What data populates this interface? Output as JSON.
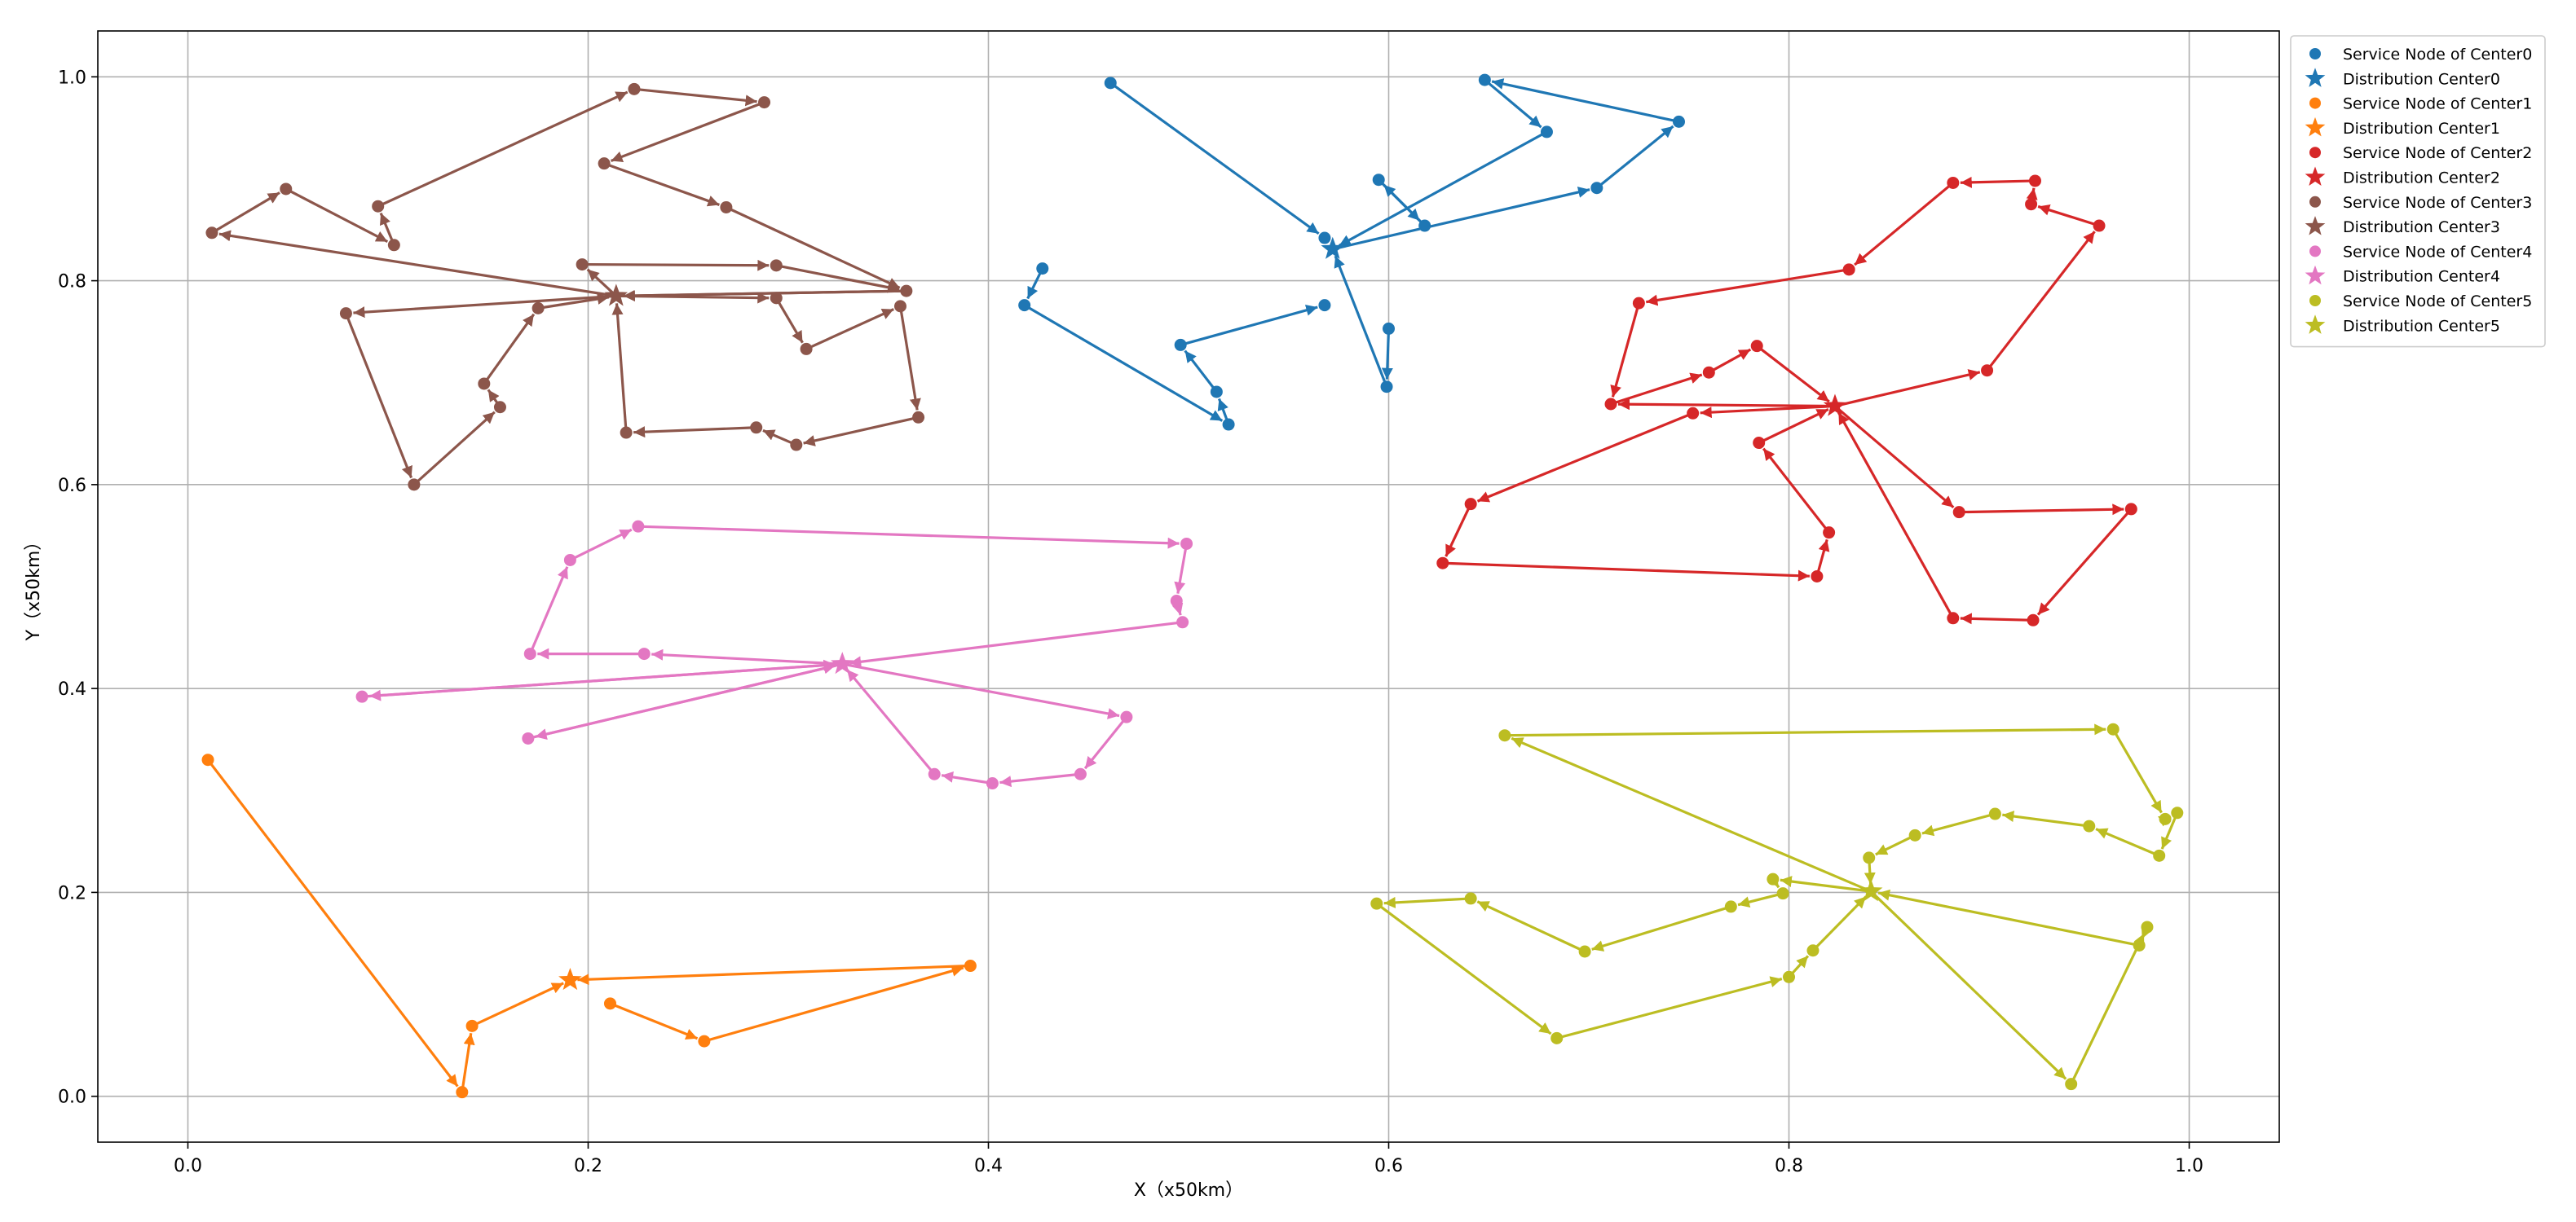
{
  "chart_data": {
    "type": "scatter",
    "title": "",
    "xlabel": "X（x50km）",
    "ylabel": "Y（x50km）",
    "xlim": [
      -0.045,
      1.045
    ],
    "ylim": [
      -0.045,
      1.045
    ],
    "xticks": [
      "0.0",
      "0.2",
      "0.4",
      "0.6",
      "0.8",
      "1.0"
    ],
    "yticks": [
      "0.0",
      "0.2",
      "0.4",
      "0.6",
      "0.8",
      "1.0"
    ],
    "grid": true,
    "legend_position": "right, outside plot",
    "series": [
      {
        "id": 0,
        "color": "#1f77b4",
        "node_label": "Service Node of Center0",
        "center_label": "Distribution Center0",
        "center": [
          0.572,
          0.831
        ],
        "routes": [
          [
            [
              0.461,
              0.994
            ],
            [
              0.568,
              0.842
            ]
          ],
          [
            [
              0.648,
              0.997
            ],
            [
              0.679,
              0.946
            ],
            [
              0.572,
              0.831
            ],
            [
              0.704,
              0.891
            ],
            [
              0.745,
              0.956
            ],
            [
              0.648,
              0.997
            ]
          ],
          [
            [
              0.595,
              0.899
            ],
            [
              0.618,
              0.854
            ],
            [
              0.595,
              0.899
            ]
          ],
          [
            [
              0.427,
              0.812
            ],
            [
              0.418,
              0.776
            ],
            [
              0.52,
              0.659
            ],
            [
              0.514,
              0.691
            ],
            [
              0.496,
              0.737
            ],
            [
              0.568,
              0.776
            ]
          ],
          [
            [
              0.6,
              0.753
            ],
            [
              0.599,
              0.696
            ],
            [
              0.572,
              0.831
            ]
          ]
        ]
      },
      {
        "id": 1,
        "color": "#ff7f0e",
        "node_label": "Service Node of Center1",
        "center_label": "Distribution Center1",
        "center": [
          0.191,
          0.114
        ],
        "routes": [
          [
            [
              0.01,
              0.33
            ],
            [
              0.137,
              0.004
            ],
            [
              0.142,
              0.069
            ],
            [
              0.191,
              0.114
            ]
          ],
          [
            [
              0.211,
              0.091
            ],
            [
              0.258,
              0.054
            ],
            [
              0.391,
              0.128
            ],
            [
              0.191,
              0.114
            ]
          ]
        ]
      },
      {
        "id": 2,
        "color": "#d62728",
        "node_label": "Service Node of Center2",
        "center_label": "Distribution Center2",
        "center": [
          0.823,
          0.677
        ],
        "routes": [
          [
            [
              0.823,
              0.677
            ],
            [
              0.711,
              0.679
            ],
            [
              0.76,
              0.71
            ],
            [
              0.784,
              0.736
            ],
            [
              0.823,
              0.677
            ]
          ],
          [
            [
              0.823,
              0.677
            ],
            [
              0.885,
              0.573
            ],
            [
              0.971,
              0.576
            ],
            [
              0.922,
              0.467
            ],
            [
              0.882,
              0.469
            ],
            [
              0.823,
              0.677
            ]
          ],
          [
            [
              0.823,
              0.677
            ],
            [
              0.899,
              0.712
            ],
            [
              0.955,
              0.854
            ],
            [
              0.921,
              0.875
            ],
            [
              0.923,
              0.898
            ],
            [
              0.882,
              0.896
            ],
            [
              0.83,
              0.811
            ],
            [
              0.725,
              0.778
            ],
            [
              0.711,
              0.679
            ]
          ],
          [
            [
              0.823,
              0.677
            ],
            [
              0.752,
              0.67
            ],
            [
              0.641,
              0.581
            ],
            [
              0.627,
              0.523
            ],
            [
              0.814,
              0.51
            ],
            [
              0.82,
              0.553
            ],
            [
              0.785,
              0.641
            ],
            [
              0.823,
              0.677
            ]
          ]
        ]
      },
      {
        "id": 3,
        "color": "#8c564b",
        "node_label": "Service Node of Center3",
        "center_label": "Distribution Center3",
        "center": [
          0.214,
          0.785
        ],
        "routes": [
          [
            [
              0.214,
              0.785
            ],
            [
              0.012,
              0.847
            ],
            [
              0.049,
              0.89
            ],
            [
              0.103,
              0.835
            ],
            [
              0.095,
              0.873
            ],
            [
              0.223,
              0.988
            ],
            [
              0.288,
              0.975
            ],
            [
              0.208,
              0.915
            ],
            [
              0.269,
              0.872
            ],
            [
              0.359,
              0.79
            ],
            [
              0.214,
              0.785
            ]
          ],
          [
            [
              0.214,
              0.785
            ],
            [
              0.197,
              0.816
            ],
            [
              0.294,
              0.815
            ],
            [
              0.359,
              0.79
            ],
            [
              0.214,
              0.785
            ]
          ],
          [
            [
              0.214,
              0.785
            ],
            [
              0.294,
              0.783
            ],
            [
              0.309,
              0.733
            ],
            [
              0.356,
              0.775
            ],
            [
              0.365,
              0.666
            ],
            [
              0.304,
              0.639
            ],
            [
              0.284,
              0.656
            ],
            [
              0.219,
              0.651
            ],
            [
              0.214,
              0.785
            ]
          ],
          [
            [
              0.214,
              0.785
            ],
            [
              0.079,
              0.768
            ],
            [
              0.113,
              0.6
            ],
            [
              0.156,
              0.676
            ],
            [
              0.148,
              0.699
            ],
            [
              0.175,
              0.773
            ],
            [
              0.214,
              0.785
            ]
          ]
        ]
      },
      {
        "id": 4,
        "color": "#e377c2",
        "node_label": "Service Node of Center4",
        "center_label": "Distribution Center4",
        "center": [
          0.327,
          0.424
        ],
        "routes": [
          [
            [
              0.327,
              0.424
            ],
            [
              0.087,
              0.392
            ],
            [
              0.327,
              0.424
            ]
          ],
          [
            [
              0.327,
              0.424
            ],
            [
              0.17,
              0.351
            ],
            [
              0.327,
              0.424
            ]
          ],
          [
            [
              0.327,
              0.424
            ],
            [
              0.228,
              0.434
            ],
            [
              0.171,
              0.434
            ],
            [
              0.191,
              0.526
            ],
            [
              0.225,
              0.559
            ],
            [
              0.499,
              0.542
            ],
            [
              0.494,
              0.486
            ],
            [
              0.497,
              0.465
            ],
            [
              0.327,
              0.424
            ]
          ],
          [
            [
              0.327,
              0.424
            ],
            [
              0.469,
              0.372
            ],
            [
              0.446,
              0.316
            ],
            [
              0.402,
              0.307
            ],
            [
              0.373,
              0.316
            ],
            [
              0.327,
              0.424
            ]
          ]
        ]
      },
      {
        "id": 5,
        "color": "#bcbd22",
        "node_label": "Service Node of Center5",
        "center_label": "Distribution Center5",
        "center": [
          0.841,
          0.201
        ],
        "routes": [
          [
            [
              0.841,
              0.201
            ],
            [
              0.658,
              0.354
            ],
            [
              0.962,
              0.36
            ],
            [
              0.988,
              0.272
            ],
            [
              0.994,
              0.278
            ],
            [
              0.985,
              0.236
            ],
            [
              0.95,
              0.265
            ],
            [
              0.903,
              0.277
            ],
            [
              0.863,
              0.256
            ],
            [
              0.84,
              0.234
            ],
            [
              0.841,
              0.201
            ]
          ],
          [
            [
              0.841,
              0.201
            ],
            [
              0.792,
              0.213
            ],
            [
              0.797,
              0.199
            ],
            [
              0.771,
              0.186
            ],
            [
              0.698,
              0.142
            ],
            [
              0.641,
              0.194
            ],
            [
              0.594,
              0.189
            ],
            [
              0.684,
              0.057
            ],
            [
              0.8,
              0.117
            ],
            [
              0.812,
              0.143
            ],
            [
              0.841,
              0.201
            ]
          ],
          [
            [
              0.841,
              0.201
            ],
            [
              0.941,
              0.012
            ],
            [
              0.979,
              0.166
            ],
            [
              0.975,
              0.148
            ],
            [
              0.841,
              0.201
            ]
          ]
        ]
      }
    ]
  }
}
